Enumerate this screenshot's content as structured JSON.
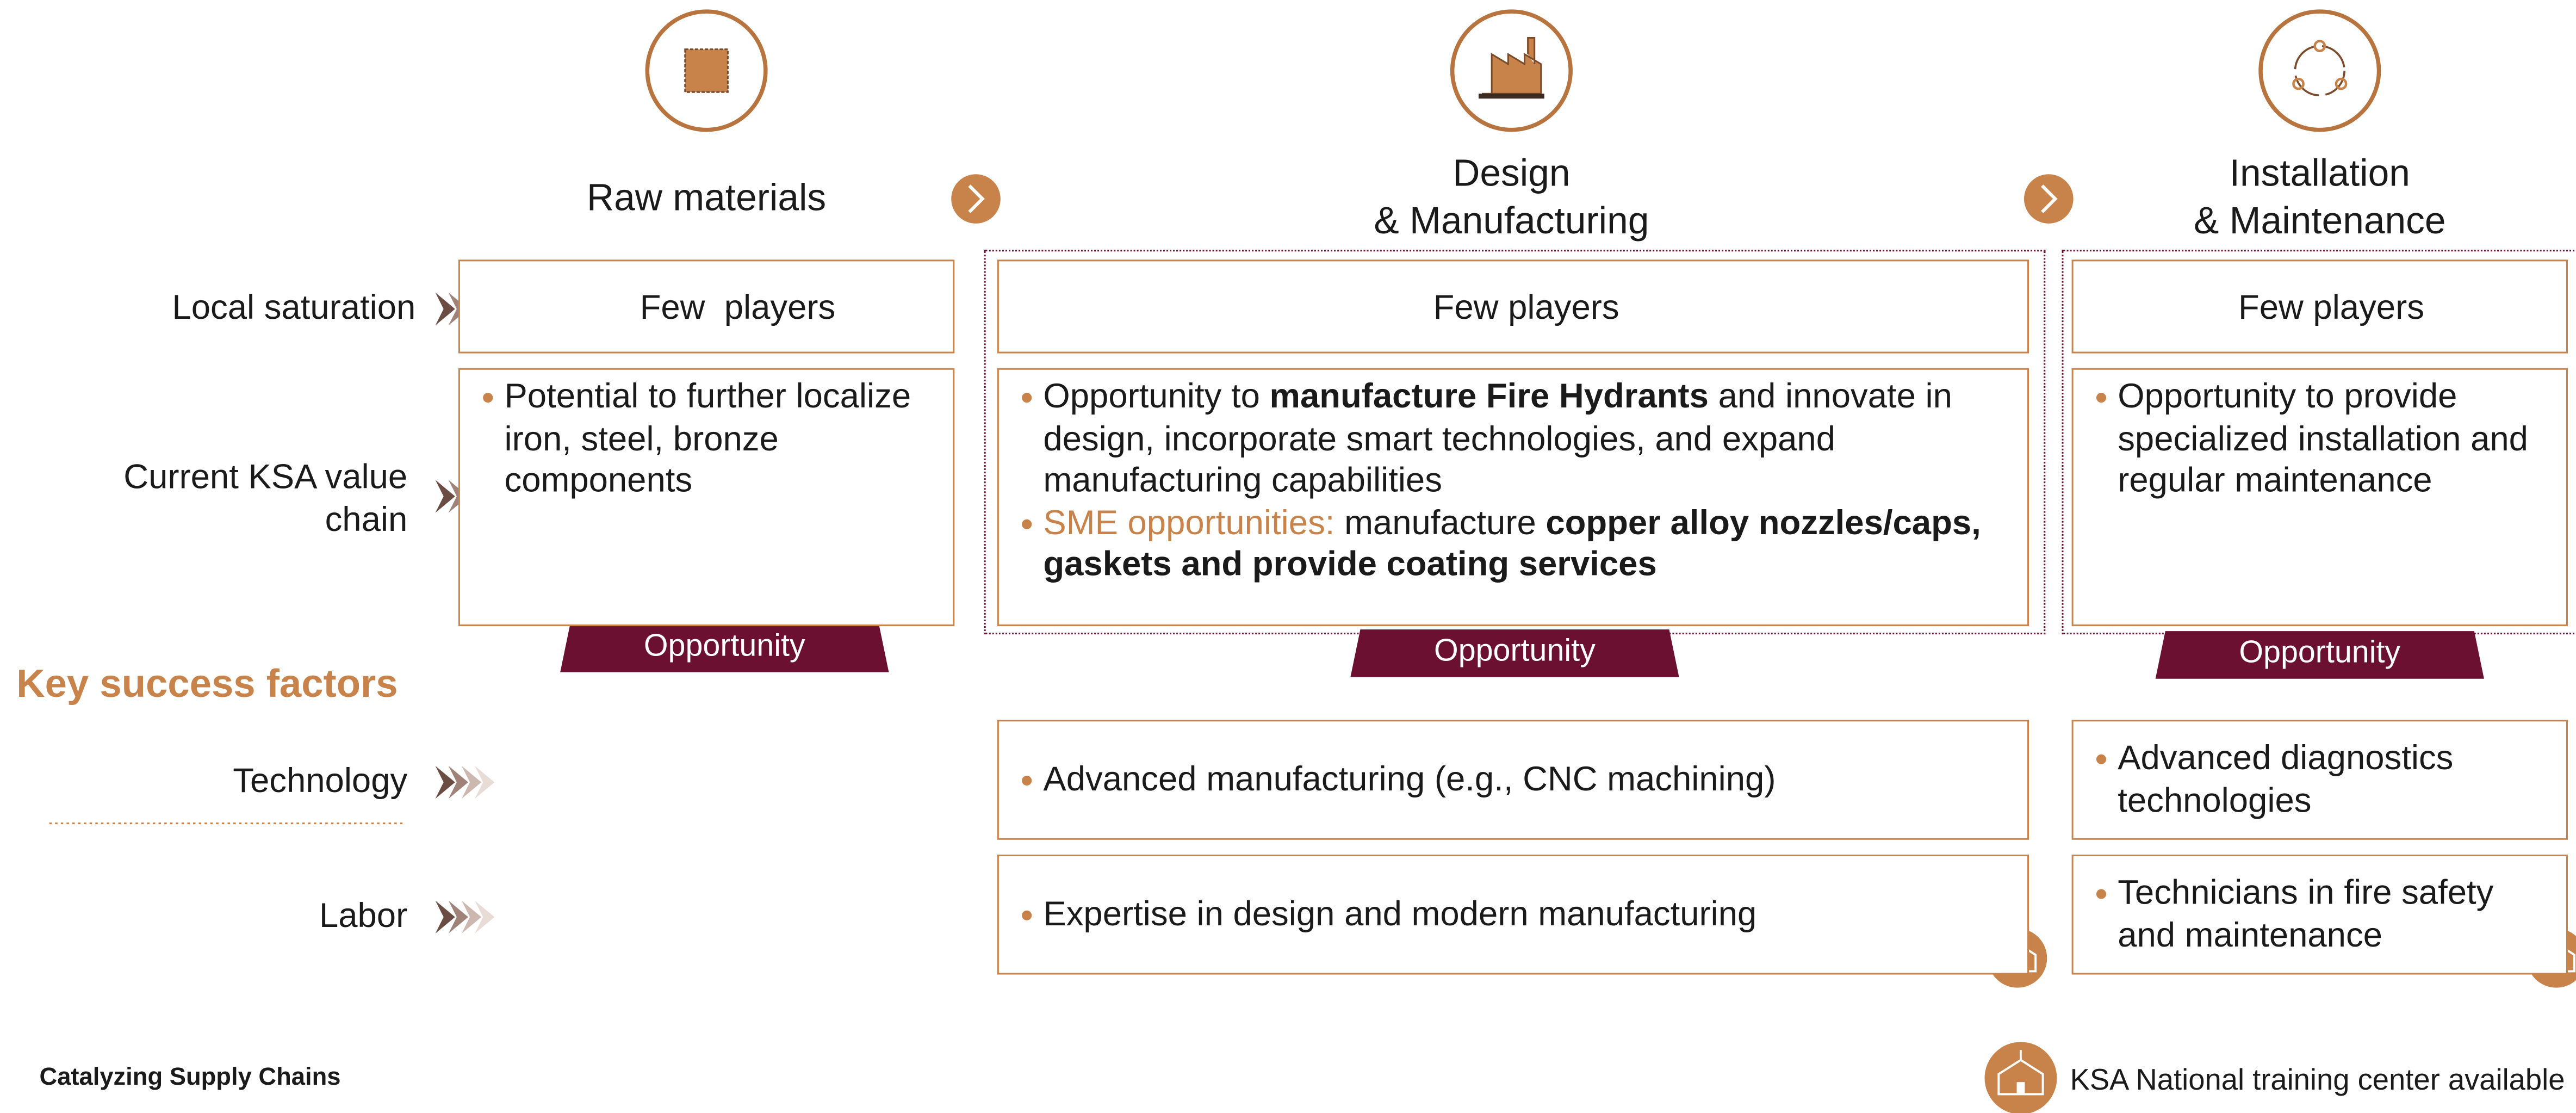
{
  "row_labels": {
    "local_saturation": "Local saturation",
    "value_chain": "Current KSA value chain",
    "key_success_factors": "Key success factors",
    "technology": "Technology",
    "labor": "Labor"
  },
  "columns": [
    {
      "title": [
        "Raw materials"
      ],
      "saturation": "Few  players",
      "value_chain": [
        [
          {
            "text": "Potential to further localize iron, steel, bronze components"
          }
        ]
      ],
      "opportunity": "Opportunity"
    },
    {
      "title": [
        "Design",
        "& Manufacturing"
      ],
      "saturation": "Few players",
      "value_chain": [
        [
          {
            "text": "Opportunity to "
          },
          {
            "text": "manufacture Fire Hydrants",
            "style": "bold"
          },
          {
            "text": " and innovate in design, incorporate smart technologies, and expand manufacturing capabilities"
          }
        ],
        [
          {
            "text": "SME opportunities:",
            "style": "accent"
          },
          {
            "text": " manufacture "
          },
          {
            "text": "copper alloy nozzles/caps, gaskets and provide coating services",
            "style": "bold"
          }
        ]
      ],
      "opportunity": "Opportunity",
      "technology": "Advanced manufacturing (e.g., CNC machining)",
      "labor": "Expertise in design and modern manufacturing"
    },
    {
      "title": [
        "Installation",
        "& Maintenance"
      ],
      "saturation": "Few players",
      "value_chain": [
        [
          {
            "text": "Opportunity to provide specialized installation and regular maintenance"
          }
        ]
      ],
      "opportunity": "Opportunity",
      "technology": "Advanced diagnostics technologies",
      "labor": "Technicians in fire safety and maintenance"
    }
  ],
  "footer": {
    "source": "Catalyzing Supply Chains",
    "legend": "KSA National training center available"
  }
}
